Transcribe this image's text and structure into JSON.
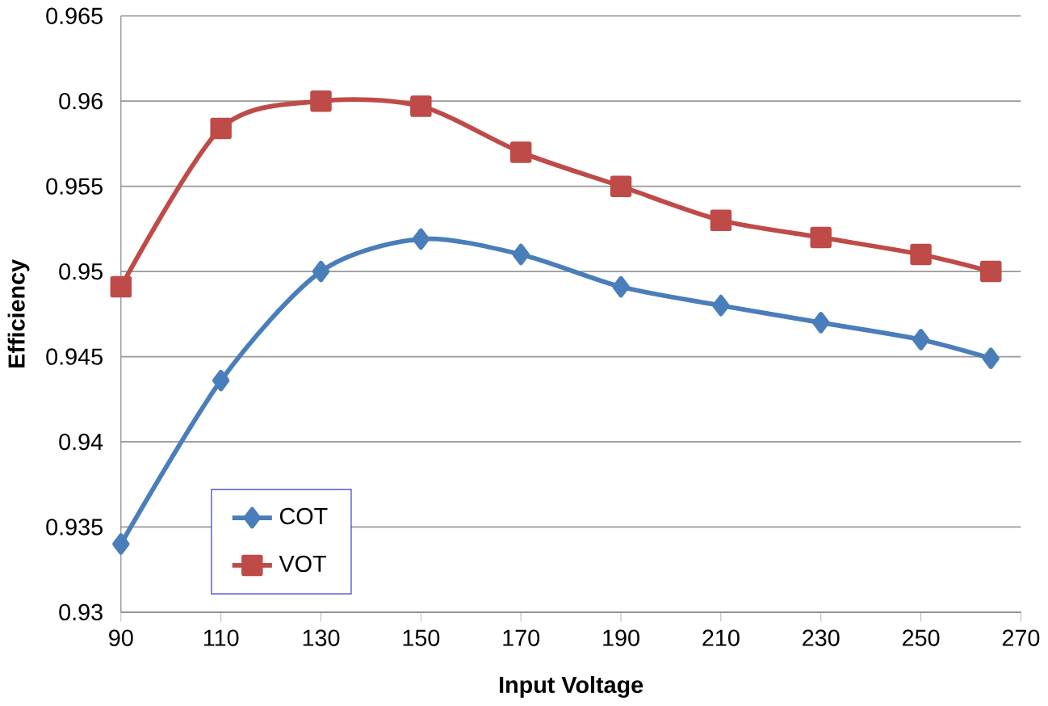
{
  "chart_data": {
    "type": "line",
    "xlabel": "Input Voltage",
    "ylabel": "Efficiency",
    "x": [
      90,
      110,
      130,
      150,
      170,
      190,
      210,
      230,
      250,
      264
    ],
    "series": [
      {
        "name": "COT",
        "color": "#4a7ebb",
        "marker": "diamond",
        "values": [
          0.934,
          0.9436,
          0.95,
          0.9519,
          0.951,
          0.9491,
          0.948,
          0.947,
          0.946,
          0.9449
        ]
      },
      {
        "name": "VOT",
        "color": "#be4b48",
        "marker": "square",
        "values": [
          0.9491,
          0.9584,
          0.96,
          0.9597,
          0.957,
          0.955,
          0.953,
          0.952,
          0.951,
          0.95
        ]
      }
    ],
    "xlim": [
      90,
      270
    ],
    "xticks": [
      90,
      110,
      130,
      150,
      170,
      190,
      210,
      230,
      250,
      270
    ],
    "ylim": [
      0.93,
      0.965
    ],
    "yticks": [
      {
        "value": 0.93,
        "label": "0.93"
      },
      {
        "value": 0.935,
        "label": "0.935"
      },
      {
        "value": 0.94,
        "label": "0.94"
      },
      {
        "value": 0.945,
        "label": "0.945"
      },
      {
        "value": 0.95,
        "label": "0.95"
      },
      {
        "value": 0.955,
        "label": "0.955"
      },
      {
        "value": 0.96,
        "label": "0.96"
      },
      {
        "value": 0.965,
        "label": "0.965"
      }
    ],
    "grid": "y",
    "legend": "bottom left",
    "line_style": "solid"
  }
}
